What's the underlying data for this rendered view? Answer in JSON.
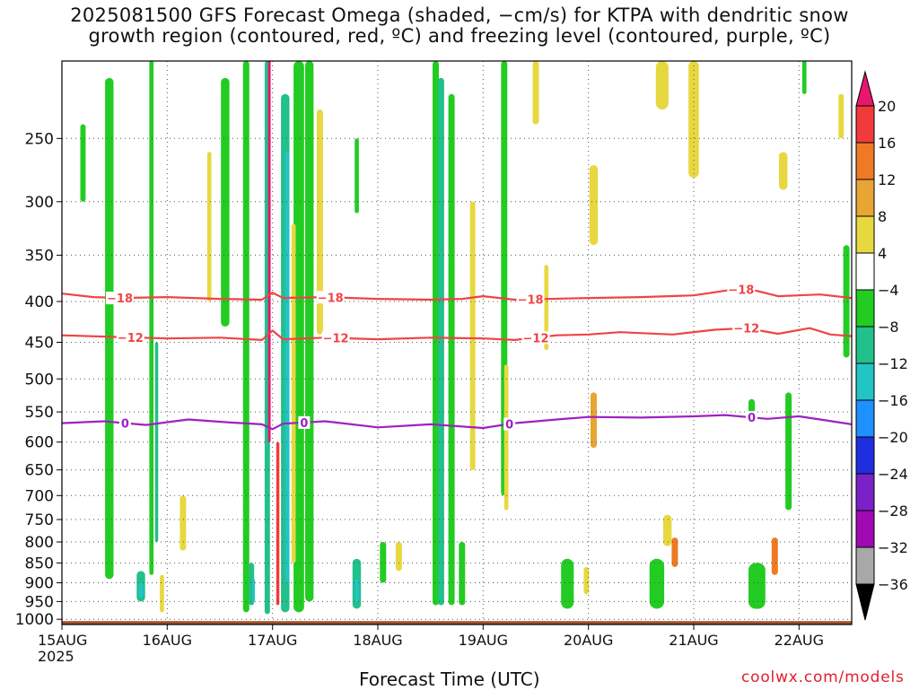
{
  "title_lines": [
    "2025081500 GFS Forecast Omega (shaded, −cm/s) for KTPA with dendritic snow",
    "growth region (contoured, red, ºC) and freezing level (contoured, purple, ºC)"
  ],
  "credit": "coolwx.com/models",
  "chart_data": {
    "type": "heatmap",
    "xlabel": "Forecast Time (UTC)",
    "x_tick_labels": [
      "15AUG",
      "16AUG",
      "17AUG",
      "18AUG",
      "19AUG",
      "20AUG",
      "21AUG",
      "22AUG"
    ],
    "x_tick_sublabel": "2025",
    "x_range_days": [
      0,
      7.5
    ],
    "y_label": "",
    "y_ticks": [
      250,
      300,
      350,
      400,
      450,
      500,
      550,
      600,
      650,
      700,
      750,
      800,
      850,
      900,
      950,
      1000
    ],
    "y_range_hpa": [
      200,
      1015
    ],
    "y_scale": "log-pressure (reversed)",
    "grid": true,
    "colorbar": {
      "labels": [
        "20",
        "16",
        "12",
        "8",
        "4",
        "−4",
        "−8",
        "−12",
        "−16",
        "−20",
        "−24",
        "−28",
        "−32",
        "−36"
      ],
      "colors": [
        "#e8176e",
        "#f23a3a",
        "#ef7a23",
        "#e8a534",
        "#e8d840",
        "#ffffff",
        "#22cc22",
        "#22c08a",
        "#22c4c4",
        "#1e90ff",
        "#1e2ee0",
        "#7a22c8",
        "#a00ab4",
        "#a8a8a8",
        "#000000"
      ]
    },
    "contours": [
      {
        "level": -18,
        "label": "−18",
        "color": "#f04444",
        "points": [
          [
            0,
            391
          ],
          [
            0.3,
            395
          ],
          [
            0.55,
            396
          ],
          [
            1.0,
            395
          ],
          [
            1.5,
            397
          ],
          [
            1.9,
            398
          ],
          [
            2.0,
            390
          ],
          [
            2.1,
            396
          ],
          [
            2.5,
            395
          ],
          [
            3.0,
            397
          ],
          [
            3.5,
            398
          ],
          [
            3.8,
            397
          ],
          [
            4.0,
            394
          ],
          [
            4.3,
            398
          ],
          [
            5.0,
            396
          ],
          [
            5.5,
            395
          ],
          [
            6.0,
            393
          ],
          [
            6.4,
            386
          ],
          [
            6.6,
            388
          ],
          [
            6.8,
            394
          ],
          [
            7.2,
            392
          ],
          [
            7.5,
            396
          ]
        ],
        "label_days": [
          0.55,
          2.55,
          4.45,
          6.45
        ]
      },
      {
        "level": -12,
        "label": "−12",
        "color": "#f04444",
        "points": [
          [
            0,
            441
          ],
          [
            0.5,
            443
          ],
          [
            1.0,
            445
          ],
          [
            1.5,
            444
          ],
          [
            1.9,
            447
          ],
          [
            2.0,
            435
          ],
          [
            2.1,
            446
          ],
          [
            2.5,
            444
          ],
          [
            3.0,
            446
          ],
          [
            3.5,
            444
          ],
          [
            4.0,
            445
          ],
          [
            4.3,
            447
          ],
          [
            4.7,
            441
          ],
          [
            5.0,
            440
          ],
          [
            5.3,
            437
          ],
          [
            5.8,
            440
          ],
          [
            6.2,
            434
          ],
          [
            6.5,
            432
          ],
          [
            6.8,
            439
          ],
          [
            7.1,
            432
          ],
          [
            7.3,
            440
          ],
          [
            7.5,
            442
          ]
        ],
        "label_days": [
          0.65,
          2.6,
          4.5,
          6.5
        ]
      },
      {
        "level": 0,
        "label": "0",
        "color": "#a020c0",
        "points": [
          [
            0,
            568
          ],
          [
            0.4,
            565
          ],
          [
            0.8,
            571
          ],
          [
            1.2,
            562
          ],
          [
            1.6,
            567
          ],
          [
            1.9,
            570
          ],
          [
            2.0,
            578
          ],
          [
            2.1,
            569
          ],
          [
            2.5,
            565
          ],
          [
            3.0,
            575
          ],
          [
            3.5,
            570
          ],
          [
            4.0,
            576
          ],
          [
            4.3,
            568
          ],
          [
            4.7,
            562
          ],
          [
            5.0,
            558
          ],
          [
            5.5,
            559
          ],
          [
            6.0,
            557
          ],
          [
            6.3,
            555
          ],
          [
            6.7,
            561
          ],
          [
            7.0,
            557
          ],
          [
            7.2,
            562
          ],
          [
            7.5,
            570
          ]
        ],
        "label_days": [
          0.6,
          2.3,
          4.25,
          6.55
        ]
      }
    ],
    "shaded_regions": [
      {
        "day": 0.2,
        "width": 0.05,
        "p0": 240,
        "p1": 300,
        "value": -8
      },
      {
        "day": 0.45,
        "width": 0.08,
        "p0": 210,
        "p1": 890,
        "value": -8
      },
      {
        "day": 0.75,
        "width": 0.08,
        "p0": 870,
        "p1": 950,
        "value": -12
      },
      {
        "day": 0.75,
        "width": 0.04,
        "p0": 900,
        "p1": 940,
        "value": -16
      },
      {
        "day": 0.85,
        "width": 0.04,
        "p0": 200,
        "p1": 880,
        "value": -8
      },
      {
        "day": 0.9,
        "width": 0.03,
        "p0": 450,
        "p1": 800,
        "value": -12
      },
      {
        "day": 0.95,
        "width": 0.04,
        "p0": 880,
        "p1": 980,
        "value": 4
      },
      {
        "day": 1.15,
        "width": 0.06,
        "p0": 700,
        "p1": 820,
        "value": 4
      },
      {
        "day": 1.4,
        "width": 0.04,
        "p0": 260,
        "p1": 400,
        "value": 4
      },
      {
        "day": 1.55,
        "width": 0.08,
        "p0": 210,
        "p1": 430,
        "value": -8
      },
      {
        "day": 1.75,
        "width": 0.06,
        "p0": 200,
        "p1": 980,
        "value": -8
      },
      {
        "day": 1.8,
        "width": 0.05,
        "p0": 850,
        "p1": 960,
        "value": -12
      },
      {
        "day": 1.82,
        "width": 0.025,
        "p0": 890,
        "p1": 950,
        "value": -16
      },
      {
        "day": 1.95,
        "width": 0.05,
        "p0": 200,
        "p1": 985,
        "value": -12
      },
      {
        "day": 1.97,
        "width": 0.025,
        "p0": 200,
        "p1": 600,
        "value": 20
      },
      {
        "day": 2.05,
        "width": 0.03,
        "p0": 600,
        "p1": 960,
        "value": 16
      },
      {
        "day": 2.12,
        "width": 0.08,
        "p0": 220,
        "p1": 980,
        "value": -12
      },
      {
        "day": 2.14,
        "width": 0.04,
        "p0": 260,
        "p1": 900,
        "value": -16
      },
      {
        "day": 2.25,
        "width": 0.1,
        "p0": 200,
        "p1": 980,
        "value": -8
      },
      {
        "day": 2.2,
        "width": 0.04,
        "p0": 320,
        "p1": 850,
        "value": 4
      },
      {
        "day": 2.35,
        "width": 0.08,
        "p0": 200,
        "p1": 950,
        "value": -8
      },
      {
        "day": 2.45,
        "width": 0.06,
        "p0": 230,
        "p1": 440,
        "value": 4
      },
      {
        "day": 2.8,
        "width": 0.04,
        "p0": 250,
        "p1": 310,
        "value": -8
      },
      {
        "day": 2.8,
        "width": 0.08,
        "p0": 840,
        "p1": 970,
        "value": -12
      },
      {
        "day": 2.8,
        "width": 0.04,
        "p0": 890,
        "p1": 950,
        "value": -16
      },
      {
        "day": 3.05,
        "width": 0.06,
        "p0": 800,
        "p1": 900,
        "value": -8
      },
      {
        "day": 3.2,
        "width": 0.06,
        "p0": 800,
        "p1": 870,
        "value": 4
      },
      {
        "day": 3.55,
        "width": 0.06,
        "p0": 200,
        "p1": 960,
        "value": -8
      },
      {
        "day": 3.6,
        "width": 0.06,
        "p0": 210,
        "p1": 960,
        "value": -12
      },
      {
        "day": 3.7,
        "width": 0.06,
        "p0": 220,
        "p1": 960,
        "value": -8
      },
      {
        "day": 3.8,
        "width": 0.06,
        "p0": 800,
        "p1": 960,
        "value": -8
      },
      {
        "day": 3.9,
        "width": 0.05,
        "p0": 300,
        "p1": 650,
        "value": 4
      },
      {
        "day": 4.2,
        "width": 0.06,
        "p0": 200,
        "p1": 700,
        "value": -8
      },
      {
        "day": 4.22,
        "width": 0.04,
        "p0": 480,
        "p1": 730,
        "value": 4
      },
      {
        "day": 4.5,
        "width": 0.06,
        "p0": 200,
        "p1": 240,
        "value": 4
      },
      {
        "day": 4.6,
        "width": 0.04,
        "p0": 360,
        "p1": 460,
        "value": 4
      },
      {
        "day": 4.8,
        "width": 0.1,
        "p0": 850,
        "p1": 960,
        "value": -12
      },
      {
        "day": 4.8,
        "width": 0.12,
        "p0": 840,
        "p1": 970,
        "value": -8
      },
      {
        "day": 4.98,
        "width": 0.05,
        "p0": 860,
        "p1": 930,
        "value": 4
      },
      {
        "day": 5.05,
        "width": 0.06,
        "p0": 520,
        "p1": 610,
        "value": 8
      },
      {
        "day": 5.05,
        "width": 0.08,
        "p0": 270,
        "p1": 340,
        "value": 4
      },
      {
        "day": 5.65,
        "width": 0.1,
        "p0": 860,
        "p1": 960,
        "value": -12
      },
      {
        "day": 5.65,
        "width": 0.14,
        "p0": 840,
        "p1": 970,
        "value": -8
      },
      {
        "day": 5.82,
        "width": 0.06,
        "p0": 790,
        "p1": 860,
        "value": 12
      },
      {
        "day": 5.75,
        "width": 0.08,
        "p0": 740,
        "p1": 810,
        "value": 4
      },
      {
        "day": 6.0,
        "width": 0.1,
        "p0": 200,
        "p1": 280,
        "value": 4
      },
      {
        "day": 5.7,
        "width": 0.12,
        "p0": 200,
        "p1": 230,
        "value": 4
      },
      {
        "day": 6.6,
        "width": 0.12,
        "p0": 870,
        "p1": 960,
        "value": -12
      },
      {
        "day": 6.6,
        "width": 0.16,
        "p0": 850,
        "p1": 970,
        "value": -8
      },
      {
        "day": 6.77,
        "width": 0.06,
        "p0": 790,
        "p1": 880,
        "value": 12
      },
      {
        "day": 6.55,
        "width": 0.06,
        "p0": 530,
        "p1": 560,
        "value": -8
      },
      {
        "day": 6.85,
        "width": 0.08,
        "p0": 260,
        "p1": 290,
        "value": 4
      },
      {
        "day": 6.9,
        "width": 0.06,
        "p0": 520,
        "p1": 730,
        "value": -8
      },
      {
        "day": 7.45,
        "width": 0.06,
        "p0": 340,
        "p1": 470,
        "value": -8
      },
      {
        "day": 7.4,
        "width": 0.05,
        "p0": 220,
        "p1": 250,
        "value": 4
      },
      {
        "day": 7.05,
        "width": 0.04,
        "p0": 200,
        "p1": 220,
        "value": -8
      }
    ],
    "ground": {
      "top_hpa": 1005,
      "color": "#a0522d"
    }
  }
}
